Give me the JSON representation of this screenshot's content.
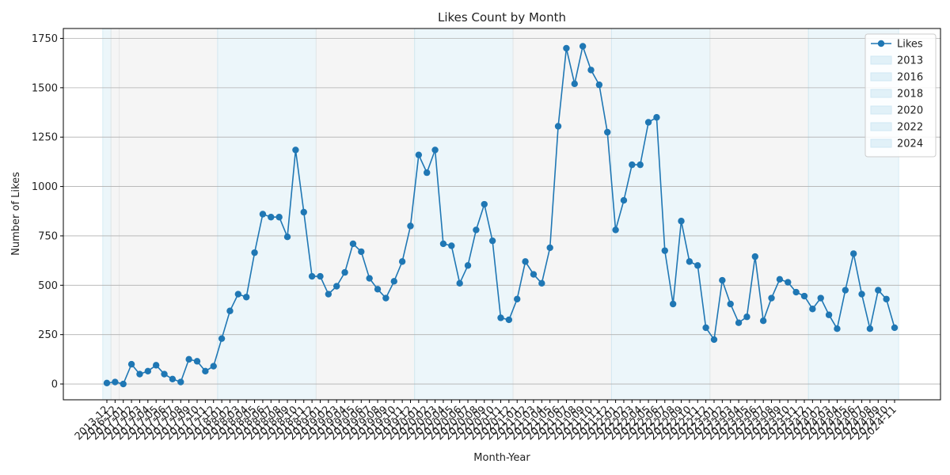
{
  "chart_data": {
    "type": "line",
    "title": "Likes Count by Month",
    "xlabel": "Month-Year",
    "ylabel": "Number of Likes",
    "ylim": [
      -80,
      1800
    ],
    "yticks": [
      0,
      250,
      500,
      750,
      1000,
      1250,
      1500,
      1750
    ],
    "grid": "horizontal",
    "legend_position": "top-right",
    "colors": {
      "line": "#1f77b4",
      "band_blue": "#cfe8f3",
      "band_gray": "#e5e5e5"
    },
    "series": [
      {
        "name": "Likes",
        "x": [
          "2013-12",
          "2016-12",
          "2017-01",
          "2017-02",
          "2017-03",
          "2017-04",
          "2017-05",
          "2017-06",
          "2017-07",
          "2017-08",
          "2017-09",
          "2017-10",
          "2017-11",
          "2017-12",
          "2018-01",
          "2018-02",
          "2018-03",
          "2018-04",
          "2018-05",
          "2018-06",
          "2018-07",
          "2018-08",
          "2018-09",
          "2018-10",
          "2018-11",
          "2018-12",
          "2019-01",
          "2019-02",
          "2019-03",
          "2019-04",
          "2019-05",
          "2019-06",
          "2019-07",
          "2019-08",
          "2019-09",
          "2019-10",
          "2019-11",
          "2019-12",
          "2020-01",
          "2020-02",
          "2020-03",
          "2020-04",
          "2020-05",
          "2020-06",
          "2020-07",
          "2020-08",
          "2020-09",
          "2020-10",
          "2020-11",
          "2020-12",
          "2021-01",
          "2021-02",
          "2021-03",
          "2021-04",
          "2021-05",
          "2021-06",
          "2021-07",
          "2021-08",
          "2021-09",
          "2021-10",
          "2021-11",
          "2021-12",
          "2022-01",
          "2022-02",
          "2022-03",
          "2022-04",
          "2022-05",
          "2022-06",
          "2022-07",
          "2022-08",
          "2022-09",
          "2022-10",
          "2022-11",
          "2022-12",
          "2023-01",
          "2023-02",
          "2023-03",
          "2023-04",
          "2023-05",
          "2023-06",
          "2023-07",
          "2023-08",
          "2023-09",
          "2023-10",
          "2023-11",
          "2023-12",
          "2024-01",
          "2024-02",
          "2024-03",
          "2024-04",
          "2024-05",
          "2024-06",
          "2024-07",
          "2024-08",
          "2024-09",
          "2024-10",
          "2024-11"
        ],
        "values": [
          5,
          10,
          0,
          100,
          50,
          65,
          95,
          50,
          25,
          10,
          125,
          115,
          65,
          90,
          230,
          370,
          455,
          440,
          665,
          860,
          845,
          845,
          745,
          1185,
          870,
          545,
          545,
          455,
          495,
          565,
          710,
          670,
          535,
          480,
          435,
          520,
          620,
          800,
          1160,
          1070,
          1185,
          710,
          700,
          510,
          600,
          780,
          910,
          725,
          335,
          325,
          430,
          620,
          555,
          510,
          690,
          1305,
          1700,
          1520,
          1710,
          1590,
          1515,
          1275,
          780,
          930,
          1110,
          1110,
          1325,
          1350,
          675,
          405,
          825,
          620,
          600,
          285,
          225,
          525,
          405,
          310,
          340,
          645,
          320,
          435,
          530,
          515,
          465,
          445,
          380,
          435,
          350,
          280,
          475,
          660,
          455,
          280,
          475,
          430,
          285
        ]
      }
    ],
    "bands": [
      {
        "year": "2013",
        "start": "2013-12",
        "end": "2013-12",
        "shade": "blue"
      },
      {
        "year": "2016",
        "start": "2016-12",
        "end": "2016-12",
        "shade": "gray"
      },
      {
        "year": "2017",
        "start": "2017-01",
        "end": "2017-12",
        "shade": "gray"
      },
      {
        "year": "2018",
        "start": "2018-01",
        "end": "2018-12",
        "shade": "blue"
      },
      {
        "year": "2019",
        "start": "2019-01",
        "end": "2019-12",
        "shade": "gray"
      },
      {
        "year": "2020",
        "start": "2020-01",
        "end": "2020-12",
        "shade": "blue"
      },
      {
        "year": "2021",
        "start": "2021-01",
        "end": "2021-12",
        "shade": "gray"
      },
      {
        "year": "2022",
        "start": "2022-01",
        "end": "2022-12",
        "shade": "blue"
      },
      {
        "year": "2023",
        "start": "2023-01",
        "end": "2023-12",
        "shade": "gray"
      },
      {
        "year": "2024",
        "start": "2024-01",
        "end": "2024-11",
        "shade": "blue"
      }
    ],
    "legend": [
      {
        "label": "Likes",
        "kind": "line"
      },
      {
        "label": "2013",
        "kind": "patch"
      },
      {
        "label": "2016",
        "kind": "patch"
      },
      {
        "label": "2018",
        "kind": "patch"
      },
      {
        "label": "2020",
        "kind": "patch"
      },
      {
        "label": "2022",
        "kind": "patch"
      },
      {
        "label": "2024",
        "kind": "patch"
      }
    ]
  }
}
